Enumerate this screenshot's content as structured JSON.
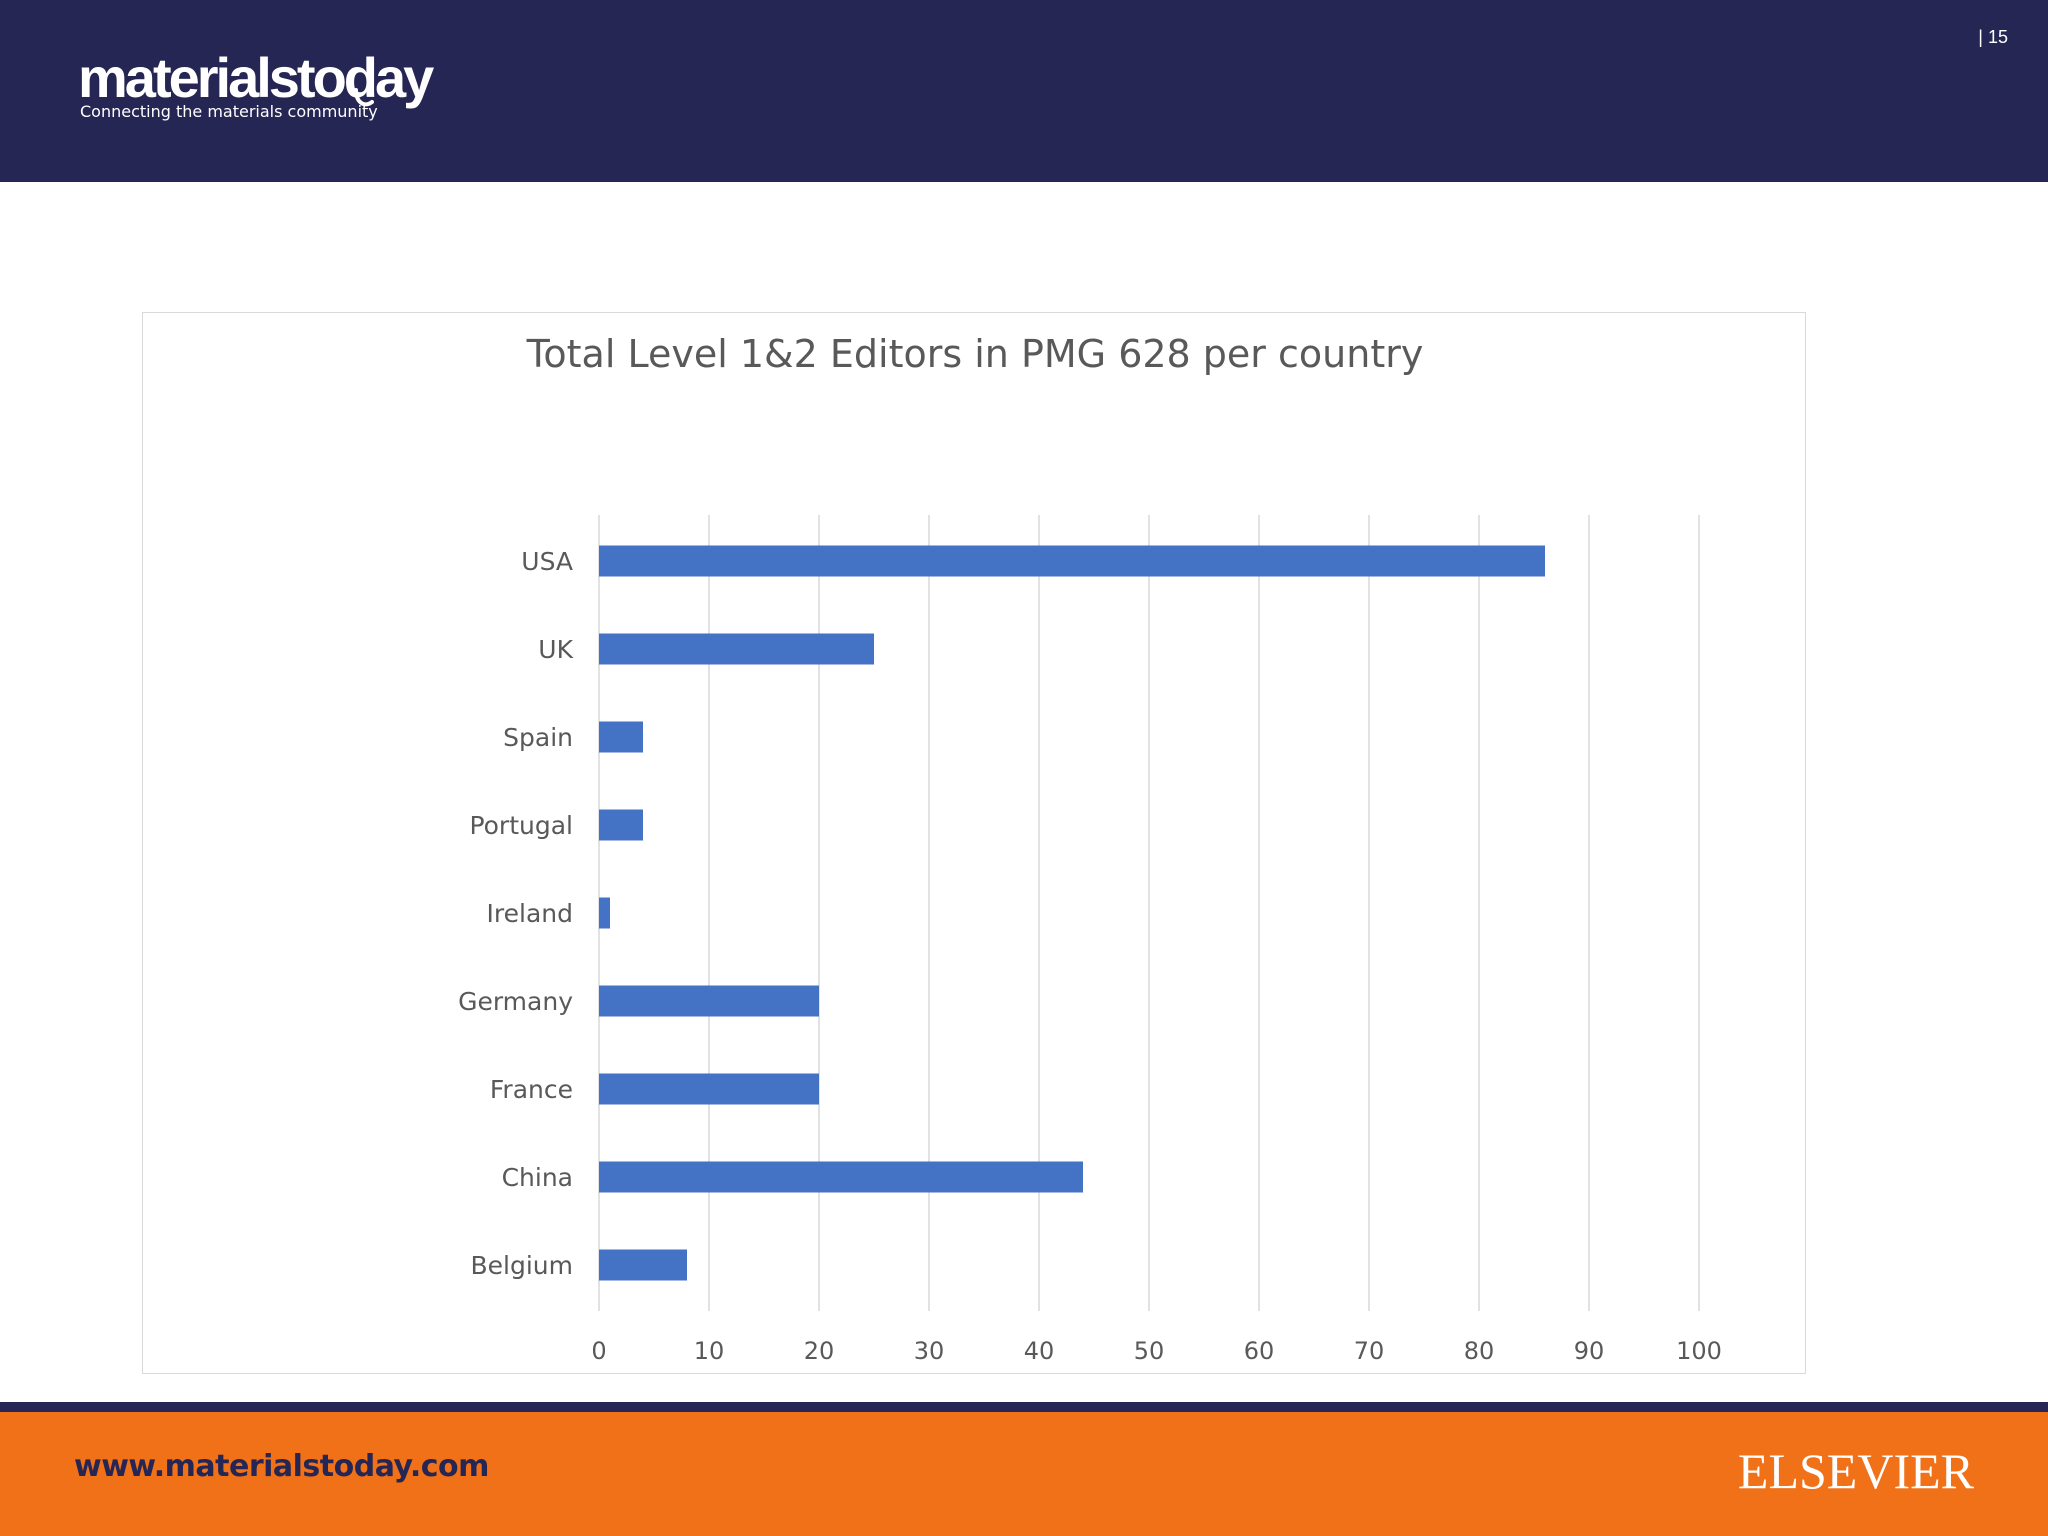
{
  "header": {
    "logo_main": "materialstoday",
    "logo_tagline": "Connecting the materials community",
    "page_number": "|  15"
  },
  "footer": {
    "url": "www.materialstoday.com",
    "brand": "ELSEVIER"
  },
  "colors": {
    "header_bg": "#262654",
    "footer_bg": "#f07118",
    "bar": "#4472c4"
  },
  "chart_data": {
    "type": "bar",
    "orientation": "horizontal",
    "title": "Total Level 1&2 Editors in PMG 628 per country",
    "categories": [
      "USA",
      "UK",
      "Spain",
      "Portugal",
      "Ireland",
      "Germany",
      "France",
      "China",
      "Belgium"
    ],
    "values": [
      86,
      25,
      4,
      4,
      1,
      20,
      20,
      44,
      8
    ],
    "xlim": [
      0,
      100
    ],
    "xticks": [
      "0",
      "10",
      "20",
      "30",
      "40",
      "50",
      "60",
      "70",
      "80",
      "90",
      "100"
    ],
    "xlabel": "",
    "ylabel": "",
    "grid": "vertical",
    "legend": "none"
  }
}
